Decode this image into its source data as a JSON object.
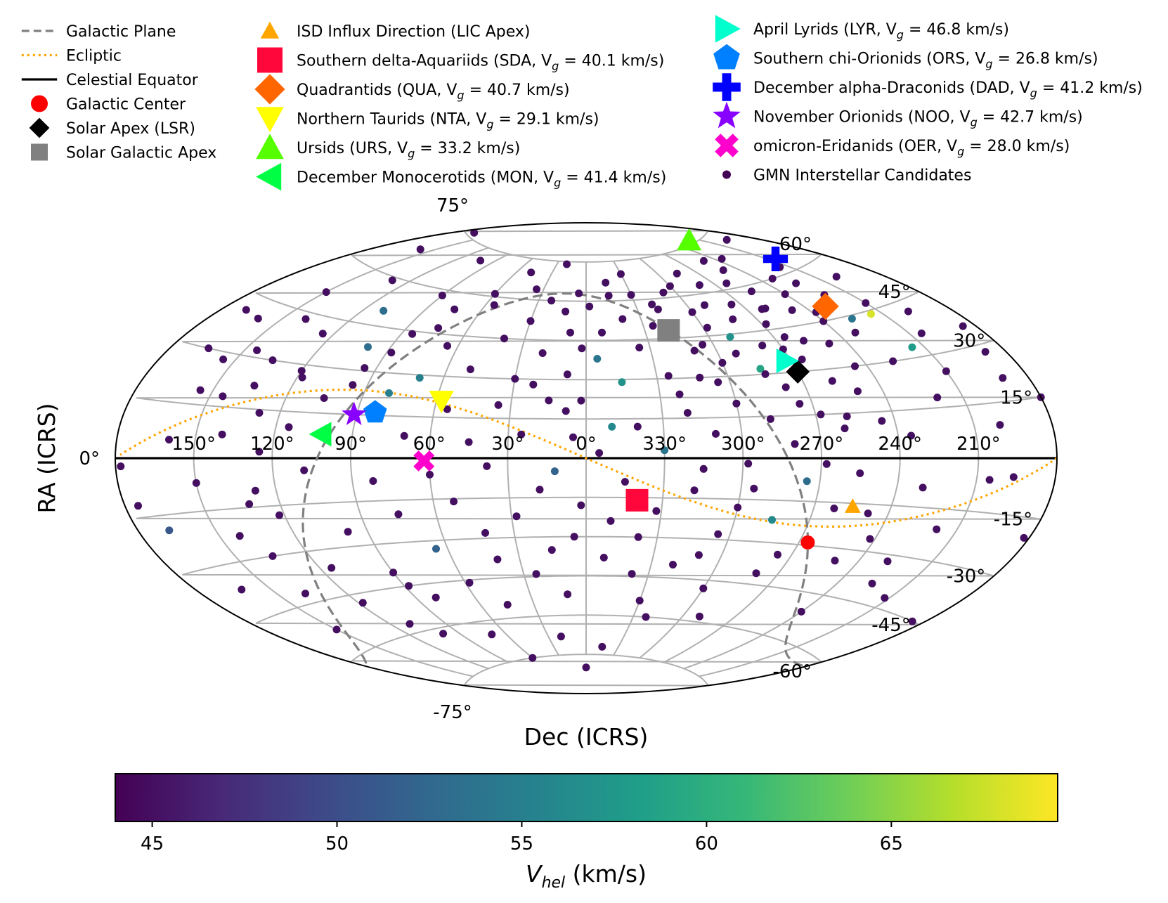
{
  "chart_data": {
    "type": "scatter",
    "projection": "aitoff-like all-sky ellipse",
    "xlabel": "Dec (ICRS)",
    "ylabel": "RA (ICRS)",
    "x_ticks": [
      "150°",
      "120°",
      "90°",
      "60°",
      "30°",
      "0°",
      "330°",
      "300°",
      "270°",
      "240°",
      "210°"
    ],
    "y_ticks": [
      "75°",
      "60°",
      "45°",
      "30°",
      "15°",
      "0°",
      "-15°",
      "-30°",
      "-45°",
      "-60°",
      "-75°"
    ],
    "center_lon": 0,
    "lon_direction": "increasing to the left",
    "grid": true,
    "legend": {
      "position": "top",
      "entries": [
        {
          "label": "Galactic Plane",
          "marker": "dashed-line",
          "color": "#808080"
        },
        {
          "label": "Ecliptic",
          "marker": "dotted-line",
          "color": "#ffa500"
        },
        {
          "label": "Celestial Equator",
          "marker": "solid-line",
          "color": "#000000"
        },
        {
          "label": "Galactic Center",
          "marker": "circle",
          "color": "#ff0000"
        },
        {
          "label": "Solar Apex (LSR)",
          "marker": "diamond",
          "color": "#000000"
        },
        {
          "label": "Solar Galactic Apex",
          "marker": "square",
          "color": "#808080"
        },
        {
          "label": "ISD Influx Direction (LIC Apex)",
          "marker": "triangle-up-small",
          "color": "#ffa500"
        },
        {
          "label": "Southern delta-Aquariids (SDA, V",
          "sub": "g",
          "rest": " = 40.1 km/s)",
          "marker": "square",
          "color": "#ff073a"
        },
        {
          "label": "Quadrantids (QUA, V",
          "sub": "g",
          "rest": " = 40.7 km/s)",
          "marker": "diamond",
          "color": "#ff6600"
        },
        {
          "label": "Northern Taurids (NTA, V",
          "sub": "g",
          "rest": " = 29.1 km/s)",
          "marker": "triangle-down",
          "color": "#ffff00"
        },
        {
          "label": "Ursids (URS, V",
          "sub": "g",
          "rest": " = 33.2 km/s)",
          "marker": "triangle-up",
          "color": "#55ff00"
        },
        {
          "label": "December Monocerotids (MON, V",
          "sub": "g",
          "rest": " = 41.4 km/s)",
          "marker": "triangle-left",
          "color": "#00ff44"
        },
        {
          "label": "April Lyrids (LYR, V",
          "sub": "g",
          "rest": " = 46.8 km/s)",
          "marker": "triangle-right",
          "color": "#00ffcc"
        },
        {
          "label": "Southern chi-Orionids (ORS, V",
          "sub": "g",
          "rest": " = 26.8 km/s)",
          "marker": "pentagon",
          "color": "#0080ff"
        },
        {
          "label": "December alpha-Draconids (DAD, V",
          "sub": "g",
          "rest": " = 41.2 km/s)",
          "marker": "plus",
          "color": "#0000ff"
        },
        {
          "label": "November Orionids (NOO, V",
          "sub": "g",
          "rest": " = 42.7 km/s)",
          "marker": "star",
          "color": "#8800ff"
        },
        {
          "label": "omicron-Eridanids (OER, V",
          "sub": "g",
          "rest": " = 28.0 km/s)",
          "marker": "x",
          "color": "#ff00cc"
        },
        {
          "label": "GMN Interstellar Candidates",
          "marker": "dot",
          "color": "#440154"
        }
      ]
    },
    "reference_points": [
      {
        "name": "Galactic Center",
        "lon": 266.4,
        "lat": -29.0,
        "marker": "circle",
        "color": "#ff0000"
      },
      {
        "name": "Solar Apex (LSR)",
        "lon": 270.0,
        "lat": 30.0,
        "marker": "diamond",
        "color": "#000000"
      },
      {
        "name": "Solar Galactic Apex",
        "lon": 318.0,
        "lat": 48.0,
        "marker": "square",
        "color": "#808080"
      },
      {
        "name": "ISD Influx Direction (LIC Apex)",
        "lon": 255.0,
        "lat": -16.0,
        "marker": "triangle-up-small",
        "color": "#ffa500"
      },
      {
        "name": "SDA",
        "lon": 340.0,
        "lat": -16.0,
        "marker": "square",
        "color": "#ff073a"
      },
      {
        "name": "QUA",
        "lon": 230.0,
        "lat": 49.0,
        "marker": "diamond",
        "color": "#ff6600"
      },
      {
        "name": "NTA",
        "lon": 58.0,
        "lat": 21.0,
        "marker": "triangle-down",
        "color": "#ffff00"
      },
      {
        "name": "URS",
        "lon": 217.0,
        "lat": 76.0,
        "marker": "triangle-up",
        "color": "#55ff00"
      },
      {
        "name": "MON",
        "lon": 102.0,
        "lat": 8.0,
        "marker": "triangle-left",
        "color": "#00ff44"
      },
      {
        "name": "LYR",
        "lon": 272.0,
        "lat": 34.0,
        "marker": "triangle-right",
        "color": "#00ffcc"
      },
      {
        "name": "ORS",
        "lon": 83.0,
        "lat": 16.0,
        "marker": "pentagon",
        "color": "#0080ff"
      },
      {
        "name": "DAD",
        "lon": 206.0,
        "lat": 64.0,
        "marker": "plus",
        "color": "#0000ff"
      },
      {
        "name": "NOO",
        "lon": 91.0,
        "lat": 15.0,
        "marker": "star",
        "color": "#8800ff"
      },
      {
        "name": "OER",
        "lon": 62.0,
        "lat": -1.0,
        "marker": "x",
        "color": "#ff00cc"
      }
    ],
    "candidates": [
      [
        20.0,
        74.0,
        45.0
      ],
      [
        48.0,
        70.0,
        45.0
      ],
      [
        102.0,
        71.0,
        45.0
      ],
      [
        170.0,
        76.0,
        45.0
      ],
      [
        158.0,
        68.0,
        45.0
      ],
      [
        195.0,
        72.0,
        45.0
      ],
      [
        235.0,
        69.0,
        45.0
      ],
      [
        250.0,
        66.0,
        45.0
      ],
      [
        280.0,
        63.0,
        45.0
      ],
      [
        330.0,
        70.0,
        45.0
      ],
      [
        345.0,
        67.0,
        45.0
      ],
      [
        5.0,
        63.0,
        45.0
      ],
      [
        60.0,
        61.0,
        45.0
      ],
      [
        90.0,
        58.0,
        45.0
      ],
      [
        130.0,
        59.0,
        45.0
      ],
      [
        12.0,
        56.0,
        45.0
      ],
      [
        30.0,
        52.0,
        45.0
      ],
      [
        75.0,
        54.0,
        45.0
      ],
      [
        110.0,
        50.0,
        53.0
      ],
      [
        150.0,
        51.0,
        45.0
      ],
      [
        200.0,
        55.0,
        45.0
      ],
      [
        225.0,
        57.0,
        45.0
      ],
      [
        260.0,
        52.0,
        45.0
      ],
      [
        300.0,
        54.0,
        45.0
      ],
      [
        320.0,
        58.0,
        45.0
      ],
      [
        340.0,
        53.0,
        45.0
      ],
      [
        352.0,
        48.0,
        45.0
      ],
      [
        2.0,
        42.0,
        45.0
      ],
      [
        20.0,
        40.0,
        45.0
      ],
      [
        40.0,
        45.0,
        45.0
      ],
      [
        65.0,
        41.0,
        45.0
      ],
      [
        85.0,
        44.0,
        45.0
      ],
      [
        100.0,
        38.0,
        53.0
      ],
      [
        125.0,
        40.0,
        45.0
      ],
      [
        140.0,
        43.0,
        45.0
      ],
      [
        170.0,
        41.0,
        45.0
      ],
      [
        210.0,
        47.0,
        45.0
      ],
      [
        240.0,
        45.0,
        45.0
      ],
      [
        265.0,
        42.0,
        45.0
      ],
      [
        290.0,
        44.0,
        57.0
      ],
      [
        310.0,
        40.0,
        45.0
      ],
      [
        335.0,
        42.0,
        45.0
      ],
      [
        355.0,
        38.0,
        54.0
      ],
      [
        8.0,
        32.0,
        45.0
      ],
      [
        30.0,
        30.0,
        45.0
      ],
      [
        50.0,
        33.0,
        45.0
      ],
      [
        70.0,
        29.0,
        55.0
      ],
      [
        95.0,
        31.0,
        45.0
      ],
      [
        120.0,
        28.0,
        45.0
      ],
      [
        145.0,
        32.0,
        45.0
      ],
      [
        165.0,
        30.0,
        45.0
      ],
      [
        185.0,
        35.0,
        45.0
      ],
      [
        215.0,
        33.0,
        58.0
      ],
      [
        245.0,
        30.0,
        45.0
      ],
      [
        285.0,
        32.0,
        59.0
      ],
      [
        305.0,
        28.0,
        45.0
      ],
      [
        325.0,
        31.0,
        45.0
      ],
      [
        345.0,
        29.0,
        57.0
      ],
      [
        15.0,
        22.0,
        45.0
      ],
      [
        35.0,
        20.0,
        45.0
      ],
      [
        55.0,
        18.0,
        45.0
      ],
      [
        80.0,
        23.0,
        55.0
      ],
      [
        105.0,
        20.0,
        45.0
      ],
      [
        135.0,
        22.0,
        45.0
      ],
      [
        155.0,
        19.0,
        45.0
      ],
      [
        190.0,
        21.0,
        45.0
      ],
      [
        220.0,
        18.0,
        45.0
      ],
      [
        250.0,
        22.0,
        45.0
      ],
      [
        275.0,
        19.0,
        45.0
      ],
      [
        300.0,
        20.0,
        45.0
      ],
      [
        320.0,
        17.0,
        45.0
      ],
      [
        350.0,
        12.0,
        56.0
      ],
      [
        5.0,
        8.0,
        45.0
      ],
      [
        25.0,
        9.0,
        45.0
      ],
      [
        45.0,
        6.0,
        45.0
      ],
      [
        70.0,
        8.0,
        45.0
      ],
      [
        115.0,
        10.0,
        45.0
      ],
      [
        140.0,
        7.0,
        45.0
      ],
      [
        160.0,
        5.0,
        45.0
      ],
      [
        200.0,
        9.0,
        45.0
      ],
      [
        235.0,
        7.0,
        45.0
      ],
      [
        260.0,
        10.0,
        45.0
      ],
      [
        280.0,
        5.0,
        45.0
      ],
      [
        310.0,
        9.0,
        45.0
      ],
      [
        330.0,
        3.0,
        54.0
      ],
      [
        355.0,
        2.0,
        45.0
      ],
      [
        12.0,
        -5.0,
        52.0
      ],
      [
        38.0,
        -3.0,
        45.0
      ],
      [
        60.0,
        -6.0,
        45.0
      ],
      [
        82.0,
        -8.0,
        45.0
      ],
      [
        108.0,
        -4.0,
        45.0
      ],
      [
        128.0,
        -10.0,
        45.0
      ],
      [
        150.0,
        -7.0,
        45.0
      ],
      [
        175.0,
        -12.0,
        45.0
      ],
      [
        205.0,
        -6.0,
        45.0
      ],
      [
        230.0,
        -9.0,
        45.0
      ],
      [
        255.0,
        -5.0,
        45.0
      ],
      [
        275.0,
        -8.0,
        53.0
      ],
      [
        295.0,
        -11.0,
        45.0
      ],
      [
        315.0,
        -4.0,
        45.0
      ],
      [
        345.0,
        -9.0,
        45.0
      ],
      [
        2.0,
        -18.0,
        45.0
      ],
      [
        28.0,
        -22.0,
        45.0
      ],
      [
        52.0,
        -16.0,
        45.0
      ],
      [
        75.0,
        -20.0,
        45.0
      ],
      [
        98.0,
        -25.0,
        45.0
      ],
      [
        122.0,
        -18.0,
        45.0
      ],
      [
        142.0,
        -23.0,
        45.0
      ],
      [
        168.0,
        -19.0,
        51.0
      ],
      [
        218.0,
        -21.0,
        45.0
      ],
      [
        242.0,
        -26.0,
        45.0
      ],
      [
        262.0,
        -17.0,
        45.0
      ],
      [
        285.0,
        -22.0,
        56.0
      ],
      [
        305.0,
        -28.0,
        45.0
      ],
      [
        332.0,
        -20.0,
        45.0
      ],
      [
        350.0,
        -24.0,
        45.0
      ],
      [
        15.0,
        -35.0,
        45.0
      ],
      [
        40.0,
        -38.0,
        45.0
      ],
      [
        65.0,
        -33.0,
        52.0
      ],
      [
        90.0,
        -40.0,
        45.0
      ],
      [
        115.0,
        -36.0,
        45.0
      ],
      [
        138.0,
        -42.0,
        45.0
      ],
      [
        162.0,
        -37.0,
        45.0
      ],
      [
        225.0,
        -39.0,
        45.0
      ],
      [
        250.0,
        -34.0,
        45.0
      ],
      [
        280.0,
        -41.0,
        45.0
      ],
      [
        310.0,
        -36.0,
        45.0
      ],
      [
        338.0,
        -44.0,
        45.0
      ],
      [
        10.0,
        -52.0,
        45.0
      ],
      [
        45.0,
        -55.0,
        45.0
      ],
      [
        80.0,
        -50.0,
        45.0
      ],
      [
        110.0,
        -57.0,
        45.0
      ],
      [
        150.0,
        -53.0,
        45.0
      ],
      [
        240.0,
        -51.0,
        45.0
      ],
      [
        290.0,
        -58.0,
        45.0
      ],
      [
        330.0,
        -54.0,
        45.0
      ],
      [
        20.0,
        -68.0,
        45.0
      ],
      [
        70.0,
        -65.0,
        45.0
      ],
      [
        0.0,
        -80.0,
        45.0
      ],
      [
        345.0,
        -72.0,
        45.0
      ],
      [
        262.0,
        52.0,
        45.0
      ],
      [
        268.0,
        47.0,
        45.0
      ],
      [
        275.0,
        55.0,
        45.0
      ],
      [
        282.0,
        50.0,
        45.0
      ],
      [
        255.0,
        58.0,
        45.0
      ],
      [
        248.0,
        50.0,
        45.0
      ],
      [
        240.0,
        55.0,
        45.0
      ],
      [
        232.0,
        60.0,
        45.0
      ],
      [
        222.0,
        52.0,
        45.0
      ],
      [
        215.0,
        62.0,
        45.0
      ],
      [
        290.0,
        56.0,
        45.0
      ],
      [
        298.0,
        48.0,
        45.0
      ],
      [
        308.0,
        62.0,
        45.0
      ],
      [
        318.0,
        56.0,
        45.0
      ],
      [
        325.0,
        50.0,
        45.0
      ],
      [
        330.0,
        62.0,
        45.0
      ],
      [
        300.0,
        35.0,
        45.0
      ],
      [
        292.0,
        38.0,
        45.0
      ],
      [
        278.0,
        40.0,
        45.0
      ],
      [
        270.0,
        38.0,
        45.0
      ],
      [
        258.0,
        40.0,
        45.0
      ],
      [
        248.0,
        38.0,
        45.0
      ],
      [
        232.0,
        40.0,
        45.0
      ],
      [
        226.0,
        44.0,
        54.0
      ],
      [
        238.0,
        48.0,
        45.0
      ],
      [
        215.0,
        44.0,
        68.0
      ],
      [
        205.0,
        36.0,
        45.0
      ],
      [
        198.0,
        42.0,
        45.0
      ],
      [
        188.0,
        28.0,
        45.0
      ],
      [
        180.0,
        15.0,
        45.0
      ],
      [
        178.0,
        -2.0,
        45.0
      ],
      [
        182.0,
        -20.0,
        45.0
      ],
      [
        185.0,
        -45.0,
        45.0
      ],
      [
        196.0,
        -5.0,
        45.0
      ],
      [
        210.0,
        25.0,
        45.0
      ],
      [
        228.0,
        30.0,
        45.0
      ],
      [
        258.0,
        26.0,
        45.0
      ],
      [
        265.0,
        34.0,
        45.0
      ],
      [
        278.0,
        25.0,
        45.0
      ],
      [
        284.0,
        30.0,
        45.0
      ],
      [
        288.0,
        14.0,
        45.0
      ],
      [
        268.0,
        15.0,
        45.0
      ],
      [
        258.0,
        14.0,
        45.0
      ],
      [
        245.0,
        12.0,
        45.0
      ],
      [
        300.0,
        64.0,
        45.0
      ],
      [
        285.0,
        68.0,
        45.0
      ],
      [
        262.0,
        62.0,
        45.0
      ],
      [
        250.0,
        70.0,
        45.0
      ],
      [
        345.0,
        62.0,
        45.0
      ],
      [
        358.0,
        58.0,
        45.0
      ],
      [
        8.0,
        48.0,
        45.0
      ],
      [
        22.0,
        60.0,
        45.0
      ],
      [
        35.0,
        64.0,
        45.0
      ],
      [
        55.0,
        57.0,
        45.0
      ],
      [
        75.0,
        47.0,
        45.0
      ],
      [
        88.0,
        37.0,
        45.0
      ],
      [
        96.0,
        25.0,
        45.0
      ],
      [
        118.0,
        26.0,
        45.0
      ],
      [
        128.0,
        14.0,
        45.0
      ],
      [
        135.0,
        30.0,
        45.0
      ],
      [
        145.0,
        18.0,
        45.0
      ],
      [
        155.0,
        28.0,
        45.0
      ],
      [
        160.0,
        40.0,
        45.0
      ],
      [
        125.0,
        2.0,
        45.0
      ],
      [
        132.0,
        -14.0,
        45.0
      ],
      [
        135.0,
        -30.0,
        45.0
      ],
      [
        118.0,
        -48.0,
        45.0
      ],
      [
        100.0,
        -62.0,
        45.0
      ],
      [
        60.0,
        -75.0,
        45.0
      ],
      [
        88.0,
        -45.0,
        45.0
      ],
      [
        42.0,
        -28.0,
        45.0
      ],
      [
        58.0,
        -46.0,
        45.0
      ],
      [
        24.0,
        -44.0,
        45.0
      ],
      [
        340.0,
        12.0,
        45.0
      ],
      [
        322.0,
        24.0,
        45.0
      ],
      [
        312.0,
        30.0,
        45.0
      ],
      [
        305.0,
        42.0,
        45.0
      ],
      [
        8.0,
        18.0,
        45.0
      ],
      [
        22.0,
        28.0,
        45.0
      ],
      [
        2.0,
        22.0,
        45.0
      ],
      [
        318.0,
        -12.0,
        45.0
      ],
      [
        298.0,
        -2.0,
        45.0
      ],
      [
        300.0,
        -18.0,
        45.0
      ],
      [
        268.0,
        -2.0,
        45.0
      ],
      [
        248.0,
        -18.0,
        45.0
      ],
      [
        228.0,
        -32.0,
        45.0
      ],
      [
        212.0,
        -42.0,
        45.0
      ],
      [
        276.0,
        -34.0,
        45.0
      ],
      [
        320.0,
        -40.0,
        45.0
      ],
      [
        352.0,
        -38.0,
        45.0
      ],
      [
        338.0,
        -30.0,
        45.0
      ],
      [
        322.0,
        -60.0,
        45.0
      ],
      [
        300.0,
        -48.0,
        45.0
      ],
      [
        5.0,
        -30.0,
        45.0
      ],
      [
        18.0,
        -12.0,
        45.0
      ]
    ],
    "colorbar": {
      "label": "V",
      "label_sub": "hel",
      "label_rest": " (km/s)",
      "min": 44.0,
      "max": 69.5,
      "ticks": [
        45,
        50,
        55,
        60,
        65
      ],
      "colormap": "viridis",
      "stops": [
        "#440154",
        "#482878",
        "#3e4a89",
        "#31688e",
        "#26828e",
        "#1f9e89",
        "#35b779",
        "#6ece58",
        "#b5de2b",
        "#fde725"
      ]
    }
  }
}
